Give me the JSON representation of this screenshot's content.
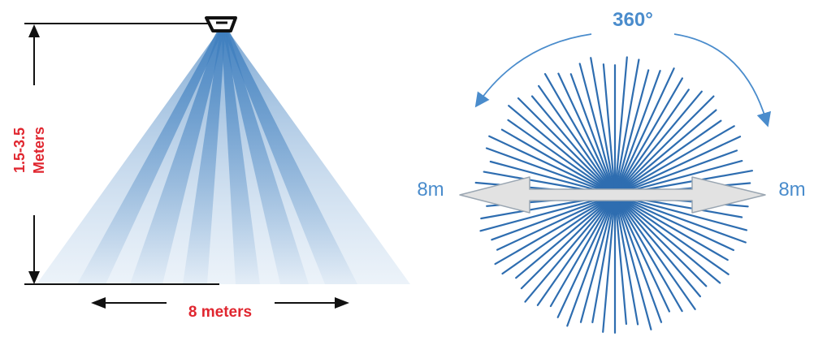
{
  "side_view": {
    "height_label_line1": "1.5-3.5",
    "height_label_line2": "Meters",
    "width_label": "8 meters"
  },
  "top_view": {
    "angle_label": "360°",
    "left_range_label": "8m",
    "right_range_label": "8m",
    "ray_count": 72
  },
  "colors": {
    "label_red": "#e0262f",
    "label_blue": "#4a8ccc",
    "ray_blue": "#2e6db0",
    "beam_blue": "#3f7fbf",
    "arrow_fill": "#e2e2e2",
    "arrow_stroke": "#9aa6b2",
    "line_dark": "#111111"
  }
}
